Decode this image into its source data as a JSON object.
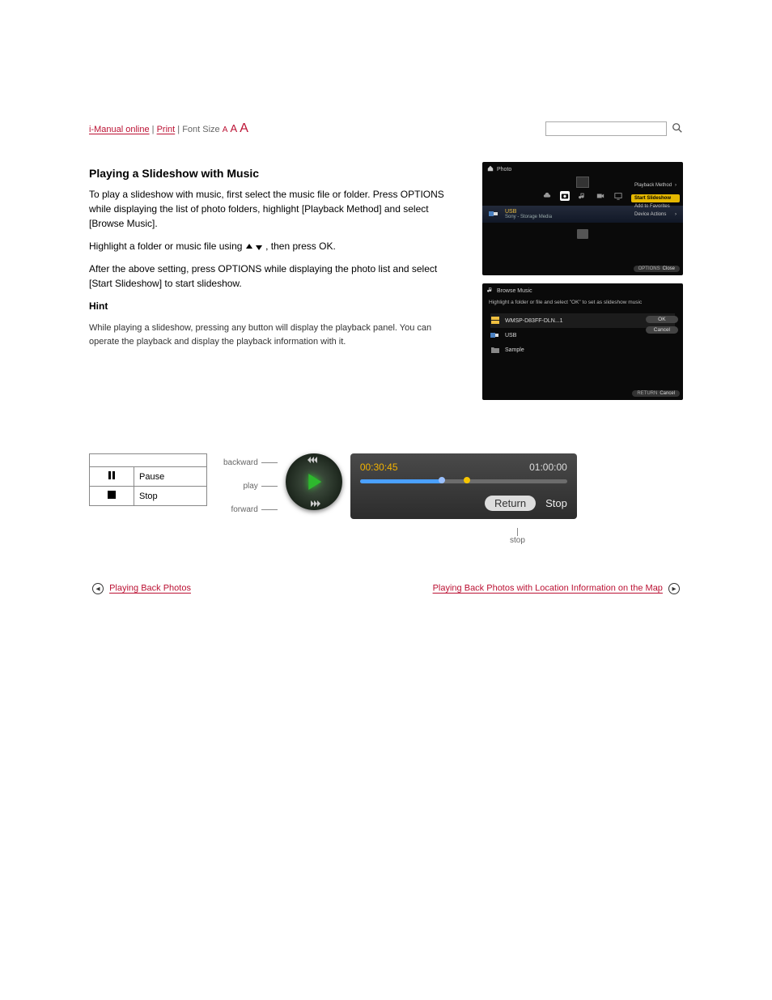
{
  "breadcrumb": {
    "home_label": "i-Manual online",
    "sep1": " | ",
    "print_label": "Print",
    "sep2": " | ",
    "font_label": "Font Size",
    "font_sizes": [
      "A",
      "A",
      "A"
    ]
  },
  "search": {
    "placeholder": ""
  },
  "instructions": {
    "title": "Playing a Slideshow with Music",
    "p1": "To play a slideshow with music, first select the music file or folder. Press OPTIONS while displaying the list of photo folders, highlight [Playback Method] and select [Browse Music].",
    "p2_a": "Highlight a folder or music file using ",
    "p2_b": ", then press OK.",
    "p3": "After the above setting, press OPTIONS while displaying the photo list and select [Start Slideshow] to start slideshow.",
    "hint_title": "Hint",
    "hint_body": "While playing a slideshow, pressing any button will display the playback panel. You can operate the playback and display the playback information with it.",
    "table": {
      "rows": [
        {
          "glyph": "pause",
          "label": "Pause"
        },
        {
          "glyph": "stop",
          "label": "Stop"
        }
      ]
    }
  },
  "panel1": {
    "title": "Photo",
    "categories": [
      "photo",
      "camera",
      "music",
      "video",
      "tv"
    ],
    "active_index": 1,
    "device": {
      "label": "USB",
      "sub": "Sony - Storage Media"
    },
    "sidemenu": [
      {
        "label": "Playback Method",
        "arrow": true,
        "hl": false
      },
      {
        "label": "Start Slideshow",
        "arrow": false,
        "hl": true
      },
      {
        "label": "Add to Favorites",
        "arrow": false,
        "hl": false
      },
      {
        "label": "Device Actions",
        "arrow": true,
        "hl": false
      }
    ],
    "close_kw": "OPTIONS",
    "close_txt": "Close"
  },
  "panel2": {
    "title": "Browse Music",
    "explain": "Highlight a folder or file and select \"OK\" to set as slideshow music",
    "items": [
      {
        "icon": "server",
        "label": "WMSP-D83FF-DLN...1",
        "selected": true
      },
      {
        "icon": "usb",
        "label": "USB",
        "selected": false
      },
      {
        "icon": "folder",
        "label": "Sample",
        "selected": false
      }
    ],
    "buttons": {
      "ok": "OK",
      "cancel": "Cancel"
    },
    "close_kw": "RETURN",
    "close_txt": "Cancel"
  },
  "player": {
    "annot": {
      "backward": "backward",
      "play": "play",
      "forward": "forward",
      "stop": "stop"
    },
    "current_time": "00:30:45",
    "total_time": "01:00:00",
    "buffer_pct": 40,
    "knob1_pct": 38,
    "knob2_pct": 50,
    "return_label": "Return",
    "stop_label": "Stop"
  },
  "prevnext": {
    "prev": "Playing Back Photos",
    "next": "Playing Back Photos with Location Information on the Map"
  },
  "colors": {
    "link": "#bb1133",
    "hl_yellow": "#e6b800",
    "time_cur": "#f2b200",
    "buffer": "#4aa0ff"
  }
}
